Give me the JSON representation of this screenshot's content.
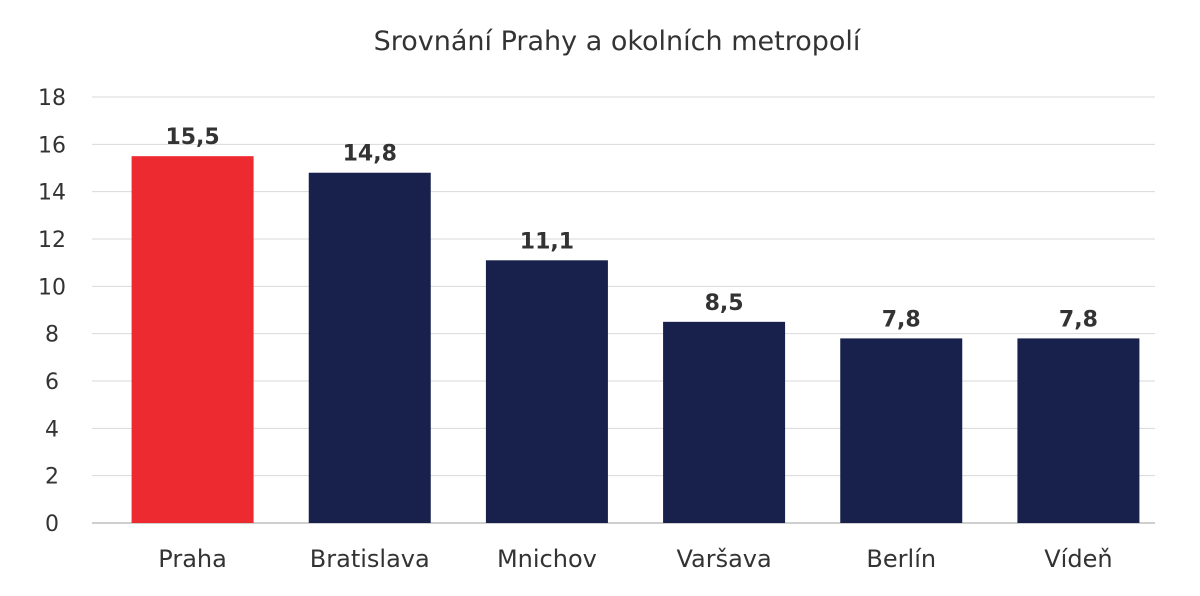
{
  "chart_data": {
    "type": "bar",
    "title": "Srovnání Prahy a okolních metropolí",
    "categories": [
      "Praha",
      "Bratislava",
      "Mnichov",
      "Varšava",
      "Berlín",
      "Vídeň"
    ],
    "values": [
      15.5,
      14.8,
      11.1,
      8.5,
      7.8,
      7.8
    ],
    "value_labels": [
      "15,5",
      "14,8",
      "11,1",
      "8,5",
      "7,8",
      "7,8"
    ],
    "yticks": [
      "0",
      "2",
      "4",
      "6",
      "8",
      "10",
      "12",
      "14",
      "16",
      "18"
    ],
    "ylim": [
      0,
      18
    ],
    "grid": true,
    "legend": "none",
    "colors": {
      "highlight": "#ee2a31",
      "bar": "#18204c",
      "text": "#333333",
      "grid": "#d9d9d9"
    },
    "highlight_index": 0
  }
}
